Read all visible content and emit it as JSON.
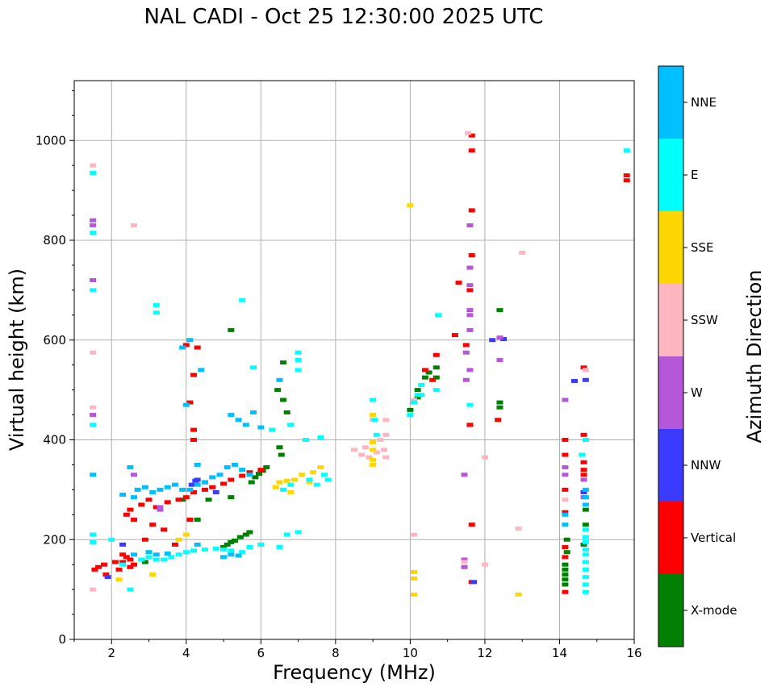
{
  "chart_data": {
    "type": "scatter",
    "title": "NAL CADI - Oct 25 12:30:00 2025 UTC",
    "xlabel": "Frequency (MHz)",
    "ylabel": "Virtual height (km)",
    "xlim": [
      1,
      16
    ],
    "ylim": [
      0,
      1120
    ],
    "xticks": [
      2,
      4,
      6,
      8,
      10,
      12,
      14,
      16
    ],
    "yticks": [
      0,
      200,
      400,
      600,
      800,
      1000
    ],
    "grid": true,
    "colorbar": {
      "label": "Azimuth Direction",
      "categories": [
        "X-mode",
        "Vertical",
        "NNW",
        "W",
        "SSW",
        "SSE",
        "E",
        "NNE"
      ],
      "colors": [
        "#008000",
        "#ff0000",
        "#3b3bff",
        "#b557d8",
        "#ffb6c1",
        "#ffd700",
        "#00ffff",
        "#00bfff"
      ]
    },
    "series": [
      {
        "name": "X-mode",
        "points": [
          [
            5.0,
            185
          ],
          [
            5.1,
            190
          ],
          [
            5.2,
            195
          ],
          [
            5.3,
            198
          ],
          [
            5.45,
            205
          ],
          [
            5.6,
            210
          ],
          [
            5.7,
            215
          ],
          [
            5.75,
            315
          ],
          [
            5.85,
            325
          ],
          [
            5.95,
            332
          ],
          [
            6.05,
            338
          ],
          [
            6.15,
            345
          ],
          [
            6.5,
            385
          ],
          [
            6.55,
            370
          ],
          [
            6.45,
            500
          ],
          [
            6.6,
            480
          ],
          [
            6.7,
            455
          ],
          [
            6.8,
            430
          ],
          [
            6.6,
            555
          ],
          [
            10.0,
            460
          ],
          [
            10.2,
            485
          ],
          [
            10.2,
            500
          ],
          [
            10.4,
            525
          ],
          [
            10.5,
            535
          ],
          [
            10.7,
            545
          ],
          [
            10.7,
            525
          ],
          [
            12.4,
            475
          ],
          [
            12.4,
            465
          ],
          [
            12.4,
            660
          ],
          [
            14.15,
            150
          ],
          [
            14.15,
            140
          ],
          [
            14.15,
            130
          ],
          [
            14.15,
            120
          ],
          [
            14.15,
            110
          ],
          [
            14.2,
            200
          ],
          [
            14.2,
            175
          ],
          [
            14.65,
            190
          ],
          [
            14.7,
            230
          ],
          [
            14.7,
            260
          ],
          [
            5.2,
            620
          ],
          [
            4.3,
            240
          ],
          [
            3.9,
            280
          ],
          [
            4.6,
            280
          ],
          [
            5.2,
            285
          ],
          [
            2.9,
            155
          ]
        ]
      },
      {
        "name": "Vertical",
        "points": [
          [
            1.55,
            140
          ],
          [
            1.65,
            145
          ],
          [
            1.8,
            150
          ],
          [
            1.85,
            130
          ],
          [
            2.1,
            155
          ],
          [
            2.2,
            140
          ],
          [
            2.3,
            170
          ],
          [
            2.4,
            165
          ],
          [
            2.5,
            160
          ],
          [
            2.6,
            150
          ],
          [
            2.5,
            145
          ],
          [
            2.3,
            155
          ],
          [
            2.4,
            250
          ],
          [
            2.5,
            260
          ],
          [
            2.6,
            240
          ],
          [
            2.8,
            270
          ],
          [
            3.0,
            280
          ],
          [
            3.2,
            265
          ],
          [
            3.5,
            275
          ],
          [
            3.8,
            280
          ],
          [
            4.0,
            285
          ],
          [
            4.2,
            295
          ],
          [
            4.5,
            300
          ],
          [
            4.7,
            305
          ],
          [
            5.0,
            312
          ],
          [
            5.2,
            320
          ],
          [
            5.5,
            328
          ],
          [
            5.7,
            335
          ],
          [
            6.0,
            340
          ],
          [
            2.9,
            200
          ],
          [
            3.1,
            230
          ],
          [
            3.4,
            220
          ],
          [
            3.7,
            190
          ],
          [
            4.1,
            240
          ],
          [
            4.2,
            400
          ],
          [
            4.2,
            420
          ],
          [
            4.0,
            590
          ],
          [
            4.3,
            585
          ],
          [
            4.1,
            475
          ],
          [
            4.2,
            530
          ],
          [
            10.6,
            520
          ],
          [
            10.4,
            540
          ],
          [
            10.7,
            570
          ],
          [
            11.2,
            610
          ],
          [
            11.5,
            590
          ],
          [
            11.3,
            715
          ],
          [
            11.6,
            700
          ],
          [
            11.6,
            430
          ],
          [
            11.65,
            1010
          ],
          [
            11.65,
            980
          ],
          [
            11.65,
            860
          ],
          [
            11.65,
            770
          ],
          [
            12.35,
            440
          ],
          [
            14.15,
            400
          ],
          [
            14.15,
            370
          ],
          [
            14.15,
            300
          ],
          [
            14.15,
            255
          ],
          [
            14.15,
            185
          ],
          [
            14.15,
            165
          ],
          [
            14.15,
            95
          ],
          [
            14.65,
            355
          ],
          [
            14.65,
            340
          ],
          [
            14.65,
            330
          ],
          [
            14.65,
            410
          ],
          [
            14.65,
            545
          ],
          [
            14.65,
            295
          ],
          [
            11.65,
            230
          ],
          [
            11.65,
            115
          ],
          [
            15.8,
            930
          ],
          [
            15.8,
            920
          ]
        ]
      },
      {
        "name": "NNW",
        "points": [
          [
            4.3,
            320
          ],
          [
            4.5,
            315
          ],
          [
            4.8,
            295
          ],
          [
            14.4,
            518
          ],
          [
            14.7,
            520
          ],
          [
            11.7,
            115
          ],
          [
            12.2,
            600
          ],
          [
            12.5,
            602
          ],
          [
            14.65,
            295
          ],
          [
            1.9,
            125
          ],
          [
            2.3,
            190
          ],
          [
            4.15,
            310
          ],
          [
            4.25,
            318
          ]
        ]
      },
      {
        "name": "W",
        "points": [
          [
            1.5,
            450
          ],
          [
            1.5,
            720
          ],
          [
            1.5,
            830
          ],
          [
            1.5,
            840
          ],
          [
            11.5,
            575
          ],
          [
            11.6,
            710
          ],
          [
            11.6,
            660
          ],
          [
            11.5,
            520
          ],
          [
            11.6,
            620
          ],
          [
            11.45,
            160
          ],
          [
            11.45,
            145
          ],
          [
            11.45,
            330
          ],
          [
            12.4,
            560
          ],
          [
            12.4,
            605
          ],
          [
            14.15,
            480
          ],
          [
            14.15,
            345
          ],
          [
            14.15,
            330
          ],
          [
            14.65,
            285
          ],
          [
            14.65,
            320
          ],
          [
            11.6,
            540
          ],
          [
            11.6,
            650
          ],
          [
            11.6,
            745
          ],
          [
            11.6,
            830
          ],
          [
            2.6,
            330
          ],
          [
            3.3,
            260
          ],
          [
            3.3,
            265
          ]
        ]
      },
      {
        "name": "SSW",
        "points": [
          [
            1.5,
            950
          ],
          [
            1.5,
            575
          ],
          [
            1.5,
            465
          ],
          [
            2.6,
            830
          ],
          [
            8.5,
            380
          ],
          [
            8.7,
            370
          ],
          [
            8.9,
            365
          ],
          [
            9.1,
            375
          ],
          [
            9.3,
            380
          ],
          [
            9.35,
            410
          ],
          [
            9.35,
            440
          ],
          [
            9.0,
            440
          ],
          [
            10.1,
            210
          ],
          [
            10.1,
            480
          ],
          [
            11.55,
            1015
          ],
          [
            12.0,
            365
          ],
          [
            12.0,
            150
          ],
          [
            12.9,
            222
          ],
          [
            13.0,
            775
          ],
          [
            14.15,
            280
          ],
          [
            14.7,
            540
          ],
          [
            11.45,
            155
          ],
          [
            9.35,
            365
          ],
          [
            8.8,
            385
          ],
          [
            9.2,
            400
          ],
          [
            1.5,
            100
          ]
        ]
      },
      {
        "name": "SSE",
        "points": [
          [
            6.5,
            315
          ],
          [
            6.7,
            318
          ],
          [
            6.9,
            320
          ],
          [
            7.1,
            330
          ],
          [
            7.4,
            335
          ],
          [
            7.6,
            345
          ],
          [
            9.0,
            350
          ],
          [
            9.0,
            360
          ],
          [
            9.0,
            380
          ],
          [
            9.0,
            395
          ],
          [
            9.0,
            450
          ],
          [
            10.1,
            135
          ],
          [
            10.1,
            122
          ],
          [
            10.1,
            90
          ],
          [
            12.9,
            90
          ],
          [
            10.0,
            870
          ],
          [
            2.2,
            120
          ],
          [
            3.8,
            200
          ],
          [
            4.0,
            210
          ],
          [
            6.4,
            305
          ],
          [
            6.8,
            295
          ],
          [
            7.3,
            315
          ],
          [
            3.1,
            130
          ]
        ]
      },
      {
        "name": "E",
        "points": [
          [
            1.5,
            935
          ],
          [
            1.5,
            815
          ],
          [
            1.5,
            700
          ],
          [
            1.5,
            430
          ],
          [
            1.5,
            210
          ],
          [
            1.5,
            195
          ],
          [
            2.5,
            100
          ],
          [
            2.8,
            160
          ],
          [
            3.0,
            165
          ],
          [
            3.2,
            160
          ],
          [
            3.4,
            160
          ],
          [
            3.6,
            165
          ],
          [
            3.8,
            170
          ],
          [
            4.0,
            175
          ],
          [
            4.2,
            178
          ],
          [
            4.5,
            180
          ],
          [
            4.8,
            182
          ],
          [
            5.0,
            180
          ],
          [
            5.2,
            178
          ],
          [
            5.5,
            175
          ],
          [
            5.7,
            185
          ],
          [
            6.0,
            190
          ],
          [
            6.5,
            185
          ],
          [
            6.7,
            210
          ],
          [
            7.0,
            215
          ],
          [
            6.3,
            420
          ],
          [
            6.8,
            430
          ],
          [
            7.0,
            540
          ],
          [
            7.0,
            575
          ],
          [
            7.2,
            400
          ],
          [
            7.6,
            405
          ],
          [
            7.7,
            330
          ],
          [
            6.6,
            300
          ],
          [
            6.8,
            310
          ],
          [
            7.3,
            320
          ],
          [
            7.5,
            310
          ],
          [
            7.8,
            320
          ],
          [
            9.0,
            480
          ],
          [
            9.05,
            440
          ],
          [
            9.1,
            410
          ],
          [
            10.0,
            450
          ],
          [
            10.1,
            475
          ],
          [
            10.3,
            490
          ],
          [
            10.3,
            510
          ],
          [
            10.7,
            500
          ],
          [
            10.75,
            650
          ],
          [
            14.6,
            370
          ],
          [
            14.7,
            400
          ],
          [
            14.7,
            220
          ],
          [
            14.7,
            205
          ],
          [
            14.7,
            195
          ],
          [
            14.7,
            180
          ],
          [
            14.7,
            170
          ],
          [
            14.7,
            155
          ],
          [
            14.7,
            140
          ],
          [
            14.7,
            125
          ],
          [
            14.7,
            110
          ],
          [
            14.7,
            95
          ],
          [
            5.5,
            680
          ],
          [
            3.2,
            670
          ],
          [
            3.2,
            655
          ],
          [
            5.8,
            545
          ],
          [
            2.0,
            200
          ],
          [
            2.3,
            150
          ],
          [
            15.8,
            980
          ],
          [
            11.6,
            470
          ],
          [
            10.2,
            490
          ],
          [
            7.0,
            560
          ]
        ]
      },
      {
        "name": "NNE",
        "points": [
          [
            1.5,
            330
          ],
          [
            2.3,
            290
          ],
          [
            2.5,
            345
          ],
          [
            2.6,
            285
          ],
          [
            2.7,
            300
          ],
          [
            2.9,
            305
          ],
          [
            3.1,
            295
          ],
          [
            3.3,
            300
          ],
          [
            3.5,
            305
          ],
          [
            3.7,
            310
          ],
          [
            3.9,
            300
          ],
          [
            4.1,
            300
          ],
          [
            4.3,
            310
          ],
          [
            4.5,
            315
          ],
          [
            4.7,
            325
          ],
          [
            4.9,
            330
          ],
          [
            5.1,
            345
          ],
          [
            5.3,
            350
          ],
          [
            5.5,
            340
          ],
          [
            5.7,
            330
          ],
          [
            5.2,
            450
          ],
          [
            5.4,
            440
          ],
          [
            5.6,
            430
          ],
          [
            5.8,
            455
          ],
          [
            6.0,
            425
          ],
          [
            6.5,
            520
          ],
          [
            5.0,
            165
          ],
          [
            5.2,
            170
          ],
          [
            5.4,
            168
          ],
          [
            4.3,
            190
          ],
          [
            3.0,
            175
          ],
          [
            3.2,
            170
          ],
          [
            3.5,
            172
          ],
          [
            2.6,
            170
          ],
          [
            14.7,
            285
          ],
          [
            14.7,
            270
          ],
          [
            14.7,
            300
          ],
          [
            14.15,
            250
          ],
          [
            14.15,
            230
          ],
          [
            4.1,
            600
          ],
          [
            3.9,
            585
          ],
          [
            4.0,
            470
          ],
          [
            4.4,
            540
          ],
          [
            4.3,
            350
          ]
        ]
      }
    ]
  }
}
